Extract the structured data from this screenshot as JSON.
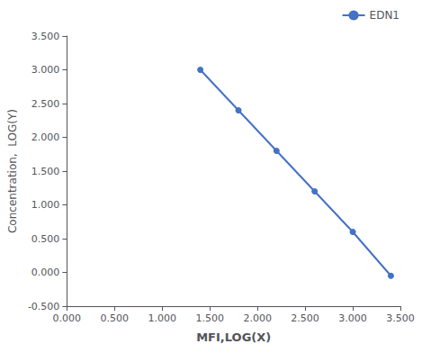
{
  "chart_data": {
    "type": "line",
    "xlabel": "MFI,LOG(X)",
    "ylabel": "Concentration,  LOG(Y)",
    "x": [
      1.4,
      1.8,
      2.2,
      2.6,
      3.0,
      3.4
    ],
    "series": [
      {
        "name": "EDN1",
        "color": "#4472C4",
        "marker": "circle",
        "values": [
          3.0,
          2.4,
          1.8,
          1.2,
          0.6,
          -0.05
        ]
      }
    ],
    "xlim": [
      0.0,
      3.5
    ],
    "xticks": [
      {
        "value": 0.0,
        "label": "0.000"
      },
      {
        "value": 0.5,
        "label": "0.500"
      },
      {
        "value": 1.0,
        "label": "1.000"
      },
      {
        "value": 1.5,
        "label": "1.500"
      },
      {
        "value": 2.0,
        "label": "2.000"
      },
      {
        "value": 2.5,
        "label": "2.500"
      },
      {
        "value": 3.0,
        "label": "3.000"
      },
      {
        "value": 3.5,
        "label": "3.500"
      }
    ],
    "ylim": [
      -0.5,
      3.5
    ],
    "yticks": [
      {
        "value": -0.5,
        "label": "-0.500"
      },
      {
        "value": 0.0,
        "label": "0.000"
      },
      {
        "value": 0.5,
        "label": "0.500"
      },
      {
        "value": 1.0,
        "label": "1.000"
      },
      {
        "value": 1.5,
        "label": "1.500"
      },
      {
        "value": 2.0,
        "label": "2.000"
      },
      {
        "value": 2.5,
        "label": "2.500"
      },
      {
        "value": 3.0,
        "label": "3.000"
      },
      {
        "value": 3.5,
        "label": "3.500"
      }
    ],
    "grid": false,
    "legend": "upper right"
  }
}
